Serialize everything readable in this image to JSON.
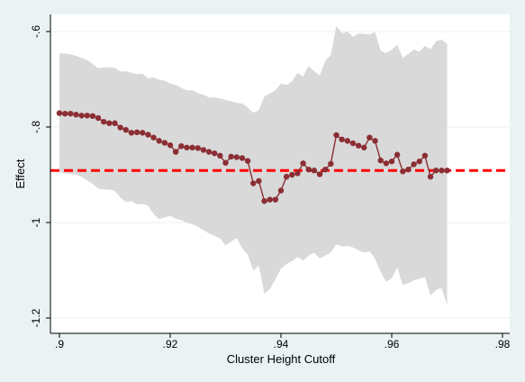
{
  "chart_data": {
    "type": "line",
    "xlabel": "Cluster Height Cutoff",
    "ylabel": "Effect",
    "xlim": [
      0.9,
      0.98
    ],
    "ylim": [
      -1.2,
      -0.6
    ],
    "x_ticks": [
      0.9,
      0.92,
      0.94,
      0.96,
      0.98
    ],
    "x_tick_labels": [
      ".9",
      ".92",
      ".94",
      ".96",
      ".98"
    ],
    "y_ticks": [
      -1.2,
      -1.0,
      -0.8,
      -0.6
    ],
    "y_tick_labels": [
      "-1.2",
      "-1",
      "-.8",
      "-.6"
    ],
    "grid": "horizontal",
    "reference_line": {
      "y": -0.891,
      "color": "#ff0000",
      "style": "dashed"
    },
    "colors": {
      "background": "#eaf2f3",
      "plot": "#ffffff",
      "band": "#d9d9d9",
      "series": "#8b2e34",
      "reference": "#ff0000"
    },
    "series": [
      {
        "type": "line-markers",
        "x": [
          0.9,
          0.901,
          0.902,
          0.903,
          0.904,
          0.905,
          0.906,
          0.907,
          0.908,
          0.909,
          0.91,
          0.911,
          0.912,
          0.913,
          0.914,
          0.915,
          0.916,
          0.917,
          0.918,
          0.919,
          0.92,
          0.921,
          0.922,
          0.923,
          0.924,
          0.925,
          0.926,
          0.927,
          0.928,
          0.929,
          0.93,
          0.931,
          0.932,
          0.933,
          0.934,
          0.935,
          0.936,
          0.937,
          0.938,
          0.939,
          0.94,
          0.941,
          0.942,
          0.943,
          0.944,
          0.945,
          0.946,
          0.947,
          0.948,
          0.949,
          0.95,
          0.951,
          0.952,
          0.953,
          0.954,
          0.955,
          0.956,
          0.957,
          0.958,
          0.959,
          0.96,
          0.961,
          0.962,
          0.963,
          0.964,
          0.965,
          0.966,
          0.967,
          0.968,
          0.969,
          0.97
        ],
        "y": [
          -0.771,
          -0.772,
          -0.772,
          -0.774,
          -0.776,
          -0.776,
          -0.777,
          -0.781,
          -0.789,
          -0.792,
          -0.792,
          -0.801,
          -0.806,
          -0.812,
          -0.811,
          -0.812,
          -0.816,
          -0.822,
          -0.829,
          -0.833,
          -0.838,
          -0.852,
          -0.84,
          -0.843,
          -0.843,
          -0.844,
          -0.848,
          -0.852,
          -0.855,
          -0.86,
          -0.875,
          -0.862,
          -0.863,
          -0.865,
          -0.871,
          -0.918,
          -0.913,
          -0.955,
          -0.952,
          -0.952,
          -0.933,
          -0.904,
          -0.9,
          -0.897,
          -0.876,
          -0.889,
          -0.891,
          -0.899,
          -0.889,
          -0.877,
          -0.817,
          -0.826,
          -0.829,
          -0.834,
          -0.839,
          -0.843,
          -0.822,
          -0.829,
          -0.87,
          -0.876,
          -0.872,
          -0.858,
          -0.893,
          -0.889,
          -0.878,
          -0.872,
          -0.86,
          -0.904,
          -0.891,
          -0.891,
          -0.891
        ],
        "ci_upper": [
          -0.646,
          -0.646,
          -0.648,
          -0.651,
          -0.655,
          -0.66,
          -0.668,
          -0.677,
          -0.675,
          -0.675,
          -0.676,
          -0.684,
          -0.683,
          -0.687,
          -0.689,
          -0.688,
          -0.698,
          -0.696,
          -0.701,
          -0.703,
          -0.709,
          -0.712,
          -0.718,
          -0.723,
          -0.723,
          -0.729,
          -0.732,
          -0.738,
          -0.738,
          -0.74,
          -0.743,
          -0.746,
          -0.749,
          -0.751,
          -0.759,
          -0.77,
          -0.765,
          -0.736,
          -0.73,
          -0.723,
          -0.709,
          -0.712,
          -0.704,
          -0.687,
          -0.694,
          -0.672,
          -0.683,
          -0.692,
          -0.662,
          -0.649,
          -0.588,
          -0.604,
          -0.6,
          -0.611,
          -0.604,
          -0.605,
          -0.606,
          -0.601,
          -0.64,
          -0.645,
          -0.638,
          -0.628,
          -0.655,
          -0.647,
          -0.638,
          -0.642,
          -0.63,
          -0.637,
          -0.62,
          -0.617,
          -0.626
        ],
        "ci_lower": [
          -0.895,
          -0.897,
          -0.898,
          -0.9,
          -0.904,
          -0.912,
          -0.919,
          -0.929,
          -0.931,
          -0.931,
          -0.934,
          -0.948,
          -0.957,
          -0.955,
          -0.962,
          -0.961,
          -0.965,
          -0.982,
          -0.993,
          -0.989,
          -0.986,
          -0.992,
          -0.995,
          -1.0,
          -1.004,
          -1.009,
          -1.016,
          -1.023,
          -1.028,
          -1.033,
          -1.048,
          -1.04,
          -1.032,
          -1.054,
          -1.067,
          -1.101,
          -1.09,
          -1.149,
          -1.139,
          -1.119,
          -1.097,
          -1.087,
          -1.081,
          -1.072,
          -1.08,
          -1.069,
          -1.063,
          -1.075,
          -1.069,
          -1.063,
          -1.046,
          -1.05,
          -1.049,
          -1.052,
          -1.058,
          -1.063,
          -1.06,
          -1.076,
          -1.103,
          -1.124,
          -1.117,
          -1.094,
          -1.131,
          -1.127,
          -1.121,
          -1.118,
          -1.114,
          -1.153,
          -1.141,
          -1.137,
          -1.173
        ]
      }
    ]
  }
}
